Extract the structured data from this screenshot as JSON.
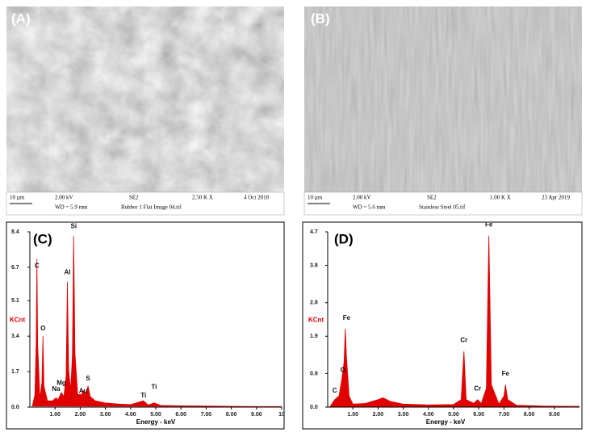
{
  "panels": [
    {
      "label": "(A)",
      "scale": "10 µm",
      "voltage": "2.00 kV",
      "wd": "WD =  5.9 mm",
      "detector": "SE2",
      "mag": "2.50 K X",
      "file": "Rubber 1 Flat Image 04.tif",
      "date": "4 Oct 2018"
    },
    {
      "label": "(B)",
      "scale": "10 µm",
      "voltage": "2.00 kV",
      "wd": "WD =  5.6 mm",
      "detector": "SE2",
      "mag": "1.00 K X",
      "file": "Stainless Steel 05.tif",
      "date": "23 Apr 2019"
    }
  ],
  "chart_data": [
    {
      "type": "area",
      "label": "(C)",
      "color": "#e00000",
      "y_label": "KCnt",
      "x_label": "Energy - keV",
      "x": [
        0.1,
        0.2,
        0.25,
        0.28,
        0.31,
        0.4,
        0.48,
        0.52,
        0.56,
        0.7,
        0.9,
        1.04,
        1.12,
        1.25,
        1.35,
        1.44,
        1.49,
        1.54,
        1.62,
        1.69,
        1.74,
        1.79,
        1.9,
        2.05,
        2.12,
        2.2,
        2.31,
        2.4,
        2.6,
        3.0,
        3.5,
        4.0,
        4.51,
        4.7,
        4.93,
        5.2,
        6,
        7,
        8,
        9,
        10
      ],
      "values": [
        0.05,
        0.6,
        3.0,
        7.1,
        3.0,
        0.4,
        1.2,
        3.4,
        1.0,
        0.3,
        0.3,
        0.45,
        0.35,
        0.7,
        0.5,
        1.5,
        6.0,
        1.8,
        0.8,
        2.5,
        8.2,
        2.6,
        0.6,
        0.6,
        0.8,
        0.6,
        1.0,
        0.5,
        0.3,
        0.2,
        0.15,
        0.12,
        0.3,
        0.1,
        0.2,
        0.08,
        0.06,
        0.05,
        0.04,
        0.03,
        0.03
      ],
      "xlim": [
        0,
        10
      ],
      "ylim": [
        0,
        8.4
      ],
      "xticks": [
        {
          "value": 1,
          "label": "1.00"
        },
        {
          "value": 2,
          "label": "2.00"
        },
        {
          "value": 3,
          "label": "3.00"
        },
        {
          "value": 4,
          "label": "4.00"
        },
        {
          "value": 5,
          "label": "5.00"
        },
        {
          "value": 6,
          "label": "6.00"
        },
        {
          "value": 7,
          "label": "7.00"
        },
        {
          "value": 8,
          "label": "8.00"
        },
        {
          "value": 9,
          "label": "9.00"
        },
        10
      ],
      "yticks": [
        {
          "value": 0,
          "label": "0.0"
        },
        1.7,
        3.4,
        5.1,
        6.7,
        8.4
      ],
      "annotations": [
        {
          "text": "C",
          "x": 0.28,
          "y": 6.6
        },
        {
          "text": "O",
          "x": 0.52,
          "y": 3.6
        },
        {
          "text": "Na",
          "x": 1.04,
          "y": 0.7
        },
        {
          "text": "Mg",
          "x": 1.25,
          "y": 1.0
        },
        {
          "text": "Al",
          "x": 1.49,
          "y": 6.3
        },
        {
          "text": "Si",
          "x": 1.74,
          "y": 8.5
        },
        {
          "text": "Au",
          "x": 2.12,
          "y": 0.6
        },
        {
          "text": "S",
          "x": 2.31,
          "y": 1.2
        },
        {
          "text": "Ti",
          "x": 4.51,
          "y": 0.4
        },
        {
          "text": "Ti",
          "x": 4.93,
          "y": 0.8
        }
      ]
    },
    {
      "type": "area",
      "label": "(D)",
      "color": "#e00000",
      "y_label": "KCnt",
      "x_label": "Energy - keV",
      "x": [
        0.1,
        0.28,
        0.45,
        0.55,
        0.65,
        0.7,
        0.75,
        0.85,
        1.0,
        1.5,
        2.0,
        2.2,
        2.5,
        3.0,
        4.0,
        5.0,
        5.3,
        5.41,
        5.5,
        5.8,
        5.95,
        6.1,
        6.3,
        6.4,
        6.5,
        6.8,
        7.0,
        7.06,
        7.15,
        7.5,
        8.5,
        9.5,
        10
      ],
      "values": [
        0.02,
        0.2,
        0.3,
        0.7,
        1.2,
        2.1,
        1.3,
        0.3,
        0.08,
        0.1,
        0.2,
        0.25,
        0.15,
        0.08,
        0.06,
        0.07,
        0.2,
        1.5,
        0.2,
        0.1,
        0.2,
        0.1,
        0.5,
        4.6,
        0.6,
        0.08,
        0.3,
        0.6,
        0.2,
        0.05,
        0.03,
        0.02,
        0.02
      ],
      "xlim": [
        0,
        10
      ],
      "ylim": [
        0,
        4.7
      ],
      "xticks": [
        {
          "value": 1,
          "label": "1.00"
        },
        {
          "value": 2,
          "label": "2.00"
        },
        {
          "value": 3,
          "label": "3.00"
        },
        {
          "value": 4,
          "label": "4.00"
        },
        {
          "value": 5,
          "label": "5.00"
        },
        {
          "value": 6,
          "label": "6.00"
        },
        {
          "value": 7,
          "label": "7.00"
        },
        {
          "value": 8,
          "label": "8.00"
        },
        {
          "value": 9,
          "label": "9.00"
        }
      ],
      "yticks": [
        {
          "value": 0,
          "label": "0.0"
        },
        0.9,
        1.9,
        2.8,
        3.8,
        4.7
      ],
      "annotations": [
        {
          "text": "C",
          "x": 0.28,
          "y": 0.35
        },
        {
          "text": "O",
          "x": 0.6,
          "y": 0.9
        },
        {
          "text": "Fe",
          "x": 0.75,
          "y": 2.3
        },
        {
          "text": "Cr",
          "x": 5.41,
          "y": 1.7
        },
        {
          "text": "Cr",
          "x": 5.95,
          "y": 0.4
        },
        {
          "text": "Fe",
          "x": 6.4,
          "y": 4.8
        },
        {
          "text": "Fe",
          "x": 7.06,
          "y": 0.8
        }
      ]
    }
  ]
}
